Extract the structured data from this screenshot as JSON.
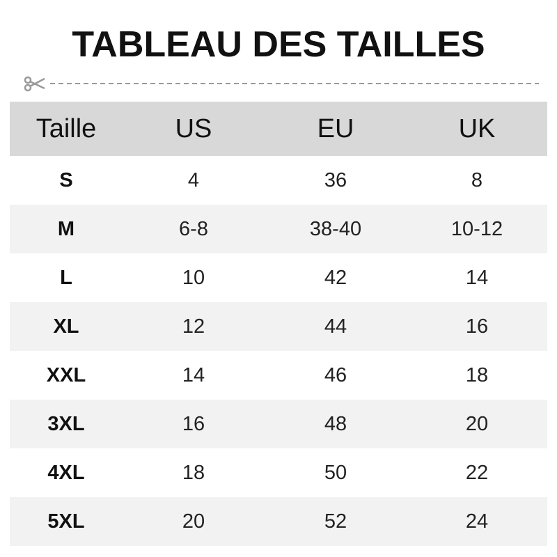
{
  "title": "TABLEAU DES TAILLES",
  "cut_line_icon": "scissors-icon",
  "colors": {
    "header_bg": "#d8d8d8",
    "alt_row_bg": "#f2f2f2",
    "dash": "#999999"
  },
  "table": {
    "headers": [
      "Taille",
      "US",
      "EU",
      "UK"
    ],
    "rows": [
      [
        "S",
        "4",
        "36",
        "8"
      ],
      [
        "M",
        "6-8",
        "38-40",
        "10-12"
      ],
      [
        "L",
        "10",
        "42",
        "14"
      ],
      [
        "XL",
        "12",
        "44",
        "16"
      ],
      [
        "XXL",
        "14",
        "46",
        "18"
      ],
      [
        "3XL",
        "16",
        "48",
        "20"
      ],
      [
        "4XL",
        "18",
        "50",
        "22"
      ],
      [
        "5XL",
        "20",
        "52",
        "24"
      ]
    ]
  }
}
